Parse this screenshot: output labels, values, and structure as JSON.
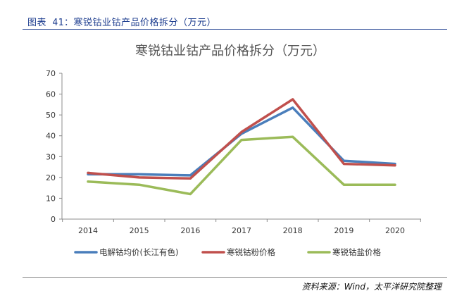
{
  "caption": "图表 41：寒锐钴业钴产品价格拆分（万元）",
  "source_note": "资料来源：Wind，太平洋研究院整理",
  "chart_data": {
    "type": "line",
    "title": "寒锐钴业钴产品价格拆分（万元）",
    "xlabel": "",
    "ylabel": "",
    "x": [
      "2014",
      "2015",
      "2016",
      "2017",
      "2018",
      "2019",
      "2020"
    ],
    "ylim": [
      0,
      70
    ],
    "yticks": [
      0,
      10,
      20,
      30,
      40,
      50,
      60,
      70
    ],
    "grid": false,
    "legend_position": "bottom",
    "series": [
      {
        "name": "电解钴均价(长江有色)",
        "color": "#4a7ebb",
        "values": [
          21.5,
          21.5,
          21,
          41,
          53.5,
          28,
          26.5
        ]
      },
      {
        "name": "寒锐钴粉价格",
        "color": "#c0504d",
        "values": [
          22.2,
          20,
          19.5,
          41.8,
          57.5,
          26.5,
          25.8
        ]
      },
      {
        "name": "寒锐钴盐价格",
        "color": "#9bbb59",
        "values": [
          18,
          16.5,
          12,
          38,
          39.5,
          16.5,
          16.5
        ]
      }
    ]
  }
}
